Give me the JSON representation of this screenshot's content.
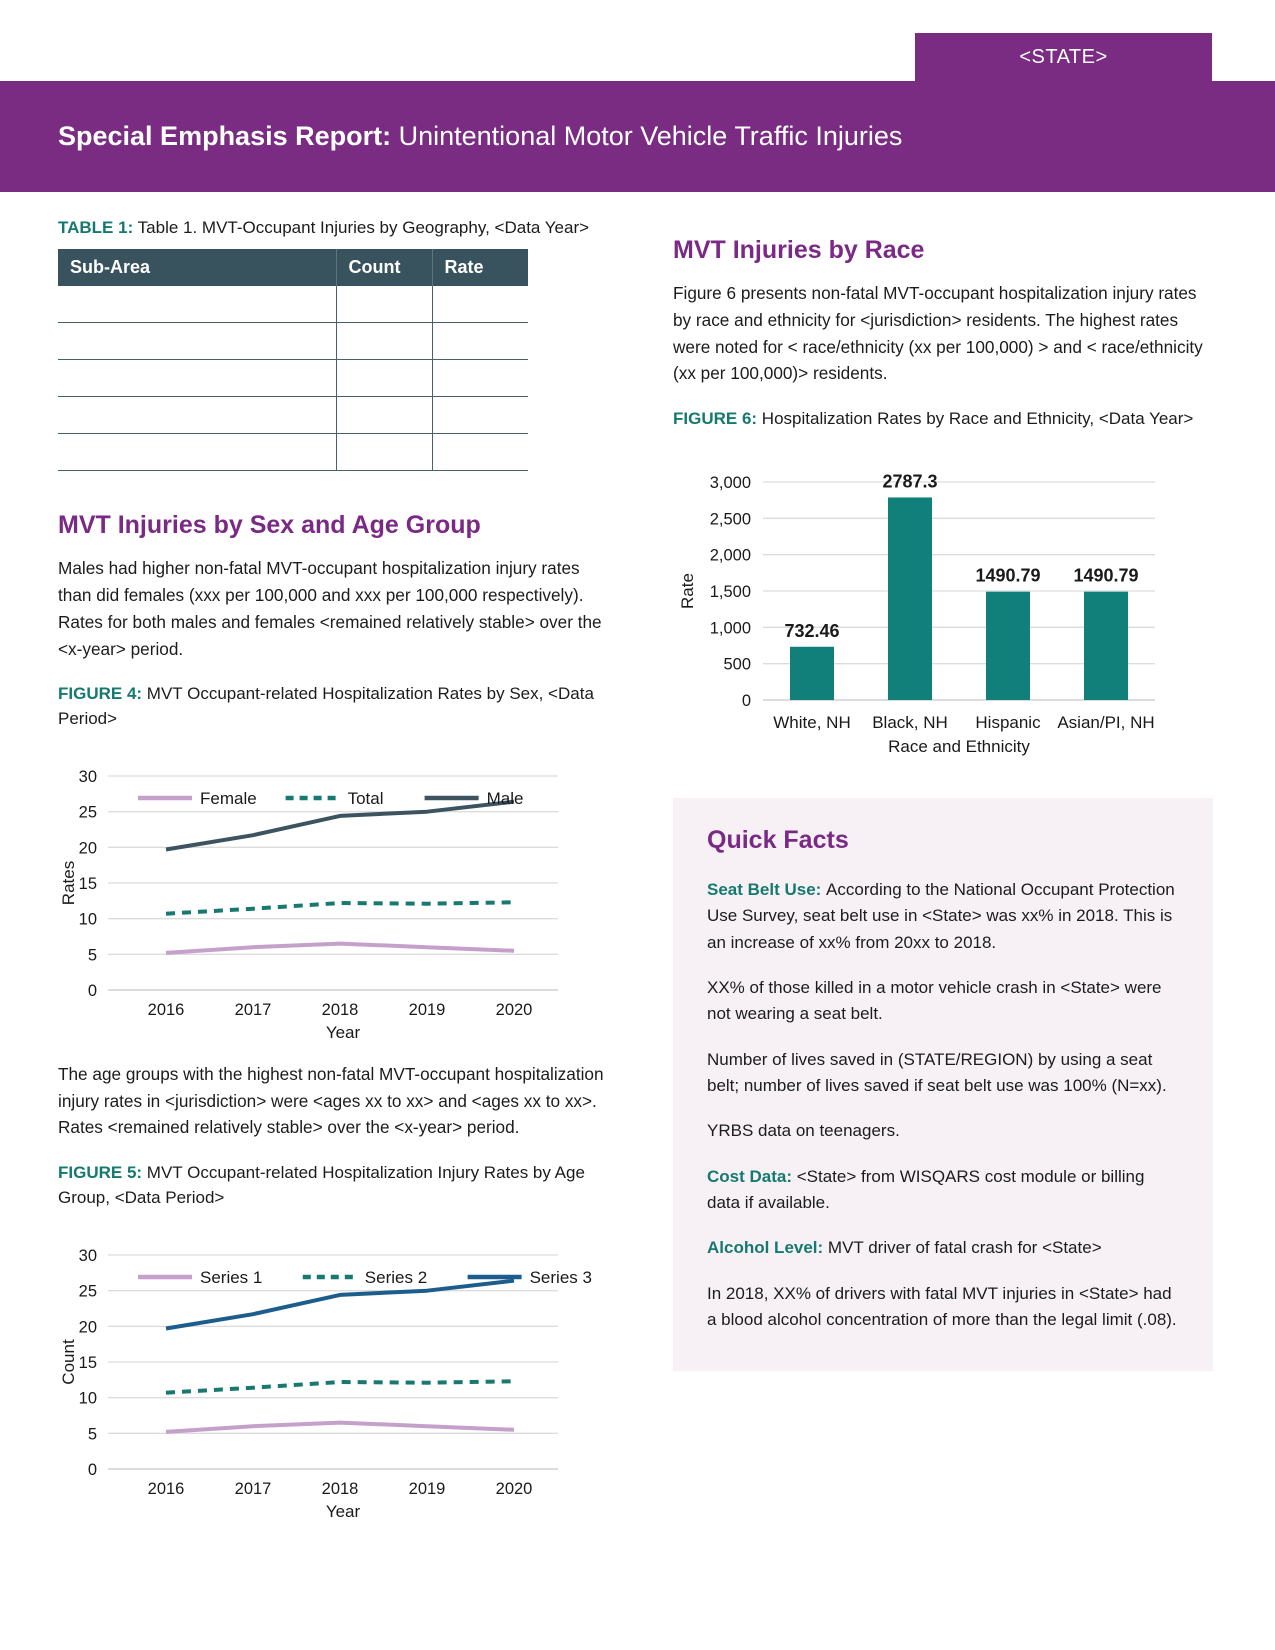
{
  "colors": {
    "purple": "#7a2b82",
    "heading_purple": "#7a2a85",
    "teal_label": "#15796f",
    "table_header": "#39535e",
    "quick_facts_bg": "#f7f1f6",
    "bar_teal": "#11807a"
  },
  "header": {
    "state_label": "<STATE>",
    "title_bold": "Special Emphasis Report:",
    "title_rest": " Unintentional Motor Vehicle Traffic Injuries"
  },
  "table1": {
    "label": "TABLE 1:",
    "caption": "Table 1. MVT-Occupant Injuries by Geography, <Data Year>",
    "columns": [
      "Sub-Area",
      "Count",
      "Rate"
    ],
    "rows": [
      [
        "",
        "",
        ""
      ],
      [
        "",
        "",
        ""
      ],
      [
        "",
        "",
        ""
      ],
      [
        "",
        "",
        ""
      ],
      [
        "",
        "",
        ""
      ]
    ]
  },
  "sex_age": {
    "heading": "MVT Injuries by Sex and Age Group",
    "paragraph": "Males had higher non-fatal MVT-occupant hospitalization injury rates than did females (xxx per 100,000 and xxx per 100,000 respectively). Rates for both males and females <remained relatively stable> over the <x-year> period.",
    "figure4_label": "FIGURE 4:",
    "figure4_caption": "MVT Occupant-related Hospitalization Rates by Sex, <Data Period>",
    "paragraph2": "The age groups with the highest non-fatal MVT-occupant hospitalization injury rates in <jurisdiction> were <ages xx to xx> and <ages xx to xx>. Rates <remained relatively stable> over the <x-year> period.",
    "figure5_label": "FIGURE 5:",
    "figure5_caption": "MVT Occupant-related Hospitalization Injury Rates by Age Group, <Data Period>"
  },
  "race": {
    "heading": "MVT Injuries by Race",
    "paragraph": "Figure 6 presents non-fatal MVT-occupant hospitalization injury rates by race and ethnicity for <jurisdiction> residents. The highest rates were noted for < race/ethnicity (xx per 100,000) > and < race/ethnicity (xx per 100,000)> residents.",
    "figure6_label": "FIGURE 6:",
    "figure6_caption": "Hospitalization Rates by Race and Ethnicity, <Data Year>"
  },
  "quick_facts": {
    "heading": "Quick Facts",
    "items": [
      {
        "lead": "Seat Belt Use:",
        "text": "According to the National Occupant Protection Use Survey, seat belt use in <State> was xx% in 2018. This is an increase of xx% from 20xx to 2018."
      },
      {
        "lead": "",
        "text": "XX% of those killed in a motor vehicle crash in <State> were not wearing a seat belt."
      },
      {
        "lead": "",
        "text": "Number of lives saved in (STATE/REGION) by using a seat belt; number of lives saved if seat belt use was 100% (N=xx)."
      },
      {
        "lead": "",
        "text": "YRBS data on teenagers."
      },
      {
        "lead": "Cost Data:",
        "text": "<State> from WISQARS cost module or billing data if available."
      },
      {
        "lead": "Alcohol Level:",
        "text": "MVT driver of fatal crash for <State>"
      },
      {
        "lead": "",
        "text": "In 2018, XX% of drivers with fatal MVT injuries in <State> had a blood alcohol concentration of more than the legal limit (.08)."
      }
    ]
  },
  "chart_data": [
    {
      "id": "fig4",
      "type": "line",
      "title": "FIGURE 4: MVT Occupant-related Hospitalization Rates by Sex, <Data Period>",
      "x": [
        "2016",
        "2017",
        "2018",
        "2019",
        "2020"
      ],
      "series": [
        {
          "name": "Female",
          "values": [
            5.2,
            6.0,
            6.5,
            6.0,
            5.5
          ],
          "color": "#c5a0cb",
          "dashed": false
        },
        {
          "name": "Total",
          "values": [
            10.7,
            11.4,
            12.2,
            12.1,
            12.3
          ],
          "color": "#17796f",
          "dashed": true
        },
        {
          "name": "Male",
          "values": [
            19.7,
            21.7,
            24.4,
            25.0,
            26.4
          ],
          "color": "#3d5360",
          "dashed": false
        }
      ],
      "xlabel": "Year",
      "ylabel": "Rates",
      "ylim": [
        0,
        30
      ],
      "ytick_step": 5,
      "grid": true,
      "legend_position": "top"
    },
    {
      "id": "fig5",
      "type": "line",
      "title": "FIGURE 5: MVT Occupant-related Hospitalization Injury Rates by Age Group, <Data Period>",
      "x": [
        "2016",
        "2017",
        "2018",
        "2019",
        "2020"
      ],
      "series": [
        {
          "name": "Series 1",
          "values": [
            5.2,
            6.0,
            6.5,
            6.0,
            5.5
          ],
          "color": "#c5a0cb",
          "dashed": false
        },
        {
          "name": "Series 2",
          "values": [
            10.7,
            11.4,
            12.2,
            12.1,
            12.3
          ],
          "color": "#17796f",
          "dashed": true
        },
        {
          "name": "Series 3",
          "values": [
            19.7,
            21.7,
            24.4,
            25.0,
            26.4
          ],
          "color": "#1c5d8d",
          "dashed": false
        }
      ],
      "xlabel": "Year",
      "ylabel": "Count",
      "ylim": [
        0,
        30
      ],
      "ytick_step": 5,
      "grid": true,
      "legend_position": "top"
    },
    {
      "id": "fig6",
      "type": "bar",
      "title": "FIGURE 6: Hospitalization Rates by Race and Ethnicity, <Data Year>",
      "categories": [
        "White, NH",
        "Black, NH",
        "Hispanic",
        "Asian/PI, NH"
      ],
      "values": [
        732.46,
        2787.3,
        1490.79,
        1490.79
      ],
      "data_labels": [
        "732.46",
        "2787.3",
        "1490.79",
        "1490.79"
      ],
      "xlabel": "Race and Ethnicity",
      "ylabel": "Rate",
      "ylim": [
        0,
        3000
      ],
      "ytick_step": 500,
      "grid": true,
      "bar_color": "#11807a"
    }
  ]
}
